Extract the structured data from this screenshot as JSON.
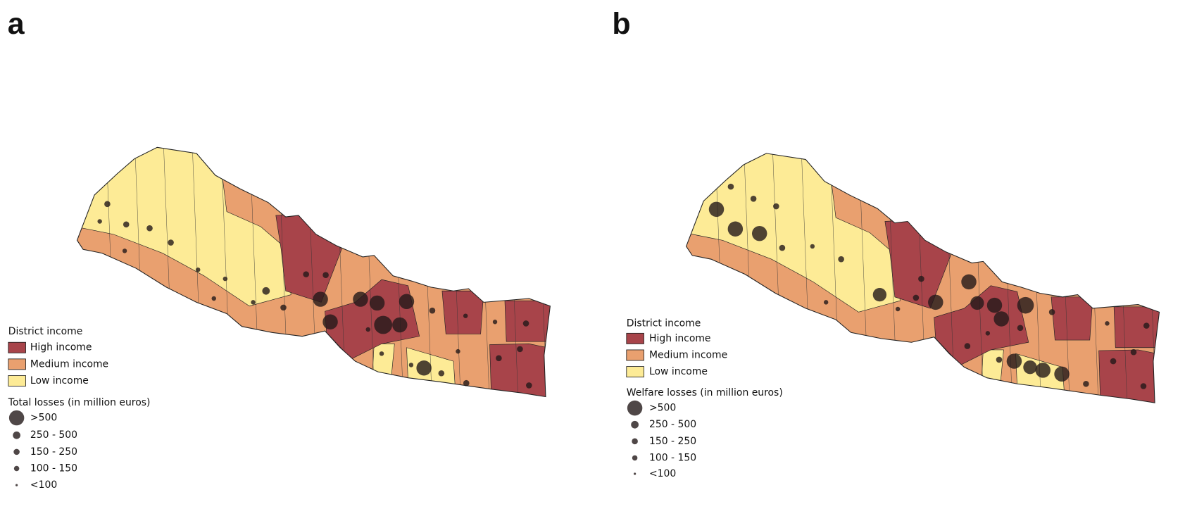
{
  "panels": [
    {
      "label": "a",
      "income_legend": {
        "title": "District income",
        "items": [
          "High income",
          "Medium income",
          "Low income"
        ]
      },
      "losses_legend": {
        "title": "Total losses (in million euros)",
        "items": [
          ">500",
          "250 - 500",
          "150 - 250",
          "100 - 150",
          "<100"
        ]
      }
    },
    {
      "label": "b",
      "income_legend": {
        "title": "District income",
        "items": [
          "High income",
          "Medium income",
          "Low income"
        ]
      },
      "losses_legend": {
        "title": "Welfare losses (in million euros)",
        "items": [
          ">500",
          "250 - 500",
          "150 - 250",
          "100 - 150",
          "<100"
        ]
      }
    }
  ]
}
